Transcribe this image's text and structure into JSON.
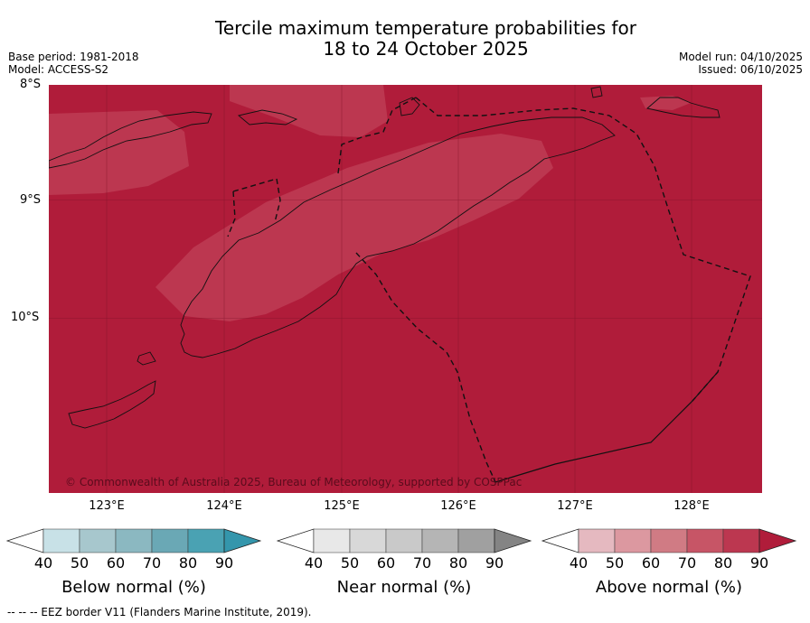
{
  "title": {
    "line1": "Tercile maximum temperature probabilities for",
    "line2": "18 to 24 October 2025"
  },
  "meta": {
    "base_period": "Base period: 1981-2018",
    "model": "Model: ACCESS-S2",
    "model_run": "Model run: 04/10/2025",
    "issued": "Issued: 06/10/2025"
  },
  "map": {
    "lat_labels": [
      "8°S",
      "9°S",
      "10°S"
    ],
    "lon_labels": [
      "123°E",
      "124°E",
      "125°E",
      "126°E",
      "127°E",
      "128°E"
    ],
    "copyright": "© Commonwealth of Australia 2025, Bureau of Meteorology, supported by COSPPac",
    "dominant_category": "Above normal",
    "dominant_probability_pct": 90,
    "colors": {
      "above_90": "#b01c3a",
      "above_80": "#bc3750",
      "above_70": "#c75566",
      "above_60": "#d07b84",
      "above_50": "#dc98a0",
      "above_40": "#e5b9c0"
    }
  },
  "colorbars": {
    "ticks": [
      "40",
      "50",
      "60",
      "70",
      "80",
      "90"
    ],
    "below": {
      "label": "Below normal (%)",
      "colors": [
        "#c8e1e7",
        "#a7c7cd",
        "#8bb8c1",
        "#6aa8b5",
        "#4aa2b3",
        "#3496ac"
      ]
    },
    "near": {
      "label": "Near normal (%)",
      "colors": [
        "#e8e8e8",
        "#d8d8d8",
        "#c9c9c9",
        "#b5b5b5",
        "#a0a0a0",
        "#848484"
      ]
    },
    "above": {
      "label": "Above normal (%)",
      "colors": [
        "#e5b9c0",
        "#dc98a0",
        "#d07b84",
        "#c75566",
        "#bc3750",
        "#b01c3a"
      ]
    }
  },
  "legend": {
    "eez": "--  --  -- EEZ border V11 (Flanders Marine Institute, 2019)."
  }
}
